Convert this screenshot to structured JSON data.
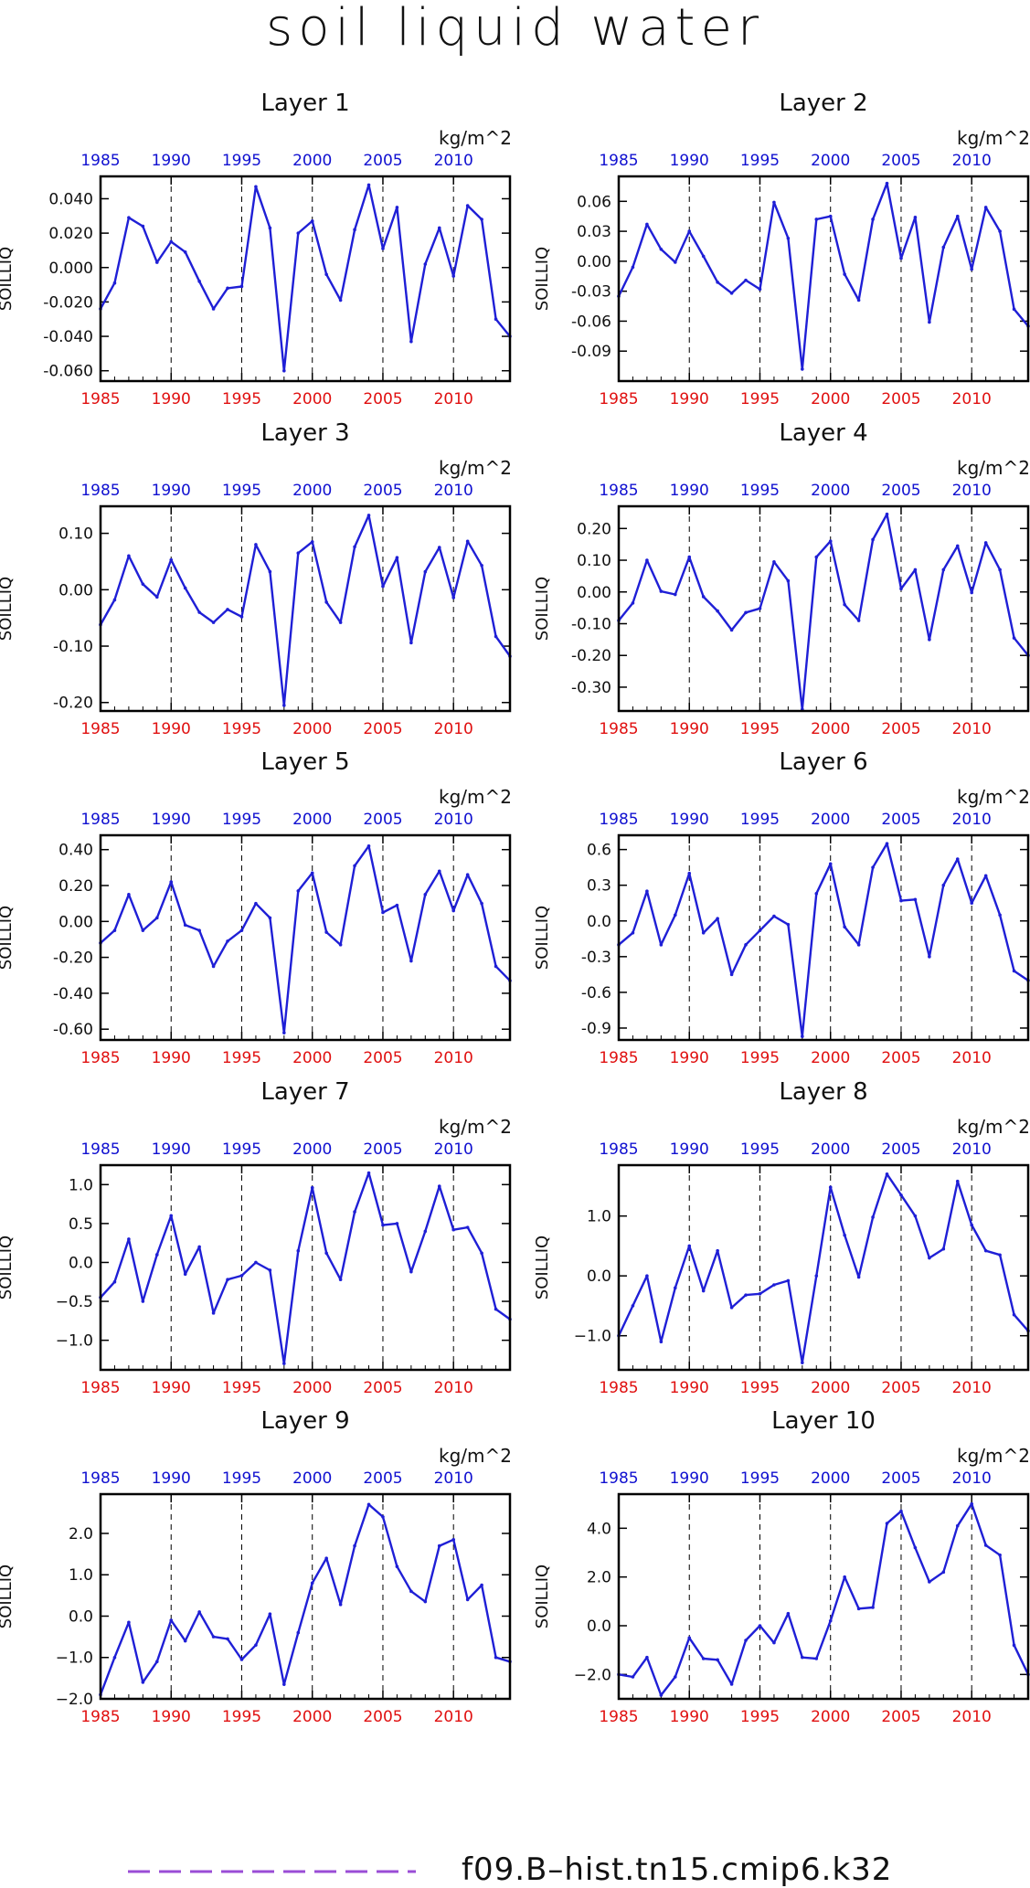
{
  "title": "soil liquid water",
  "legend": {
    "label": "f09.B–hist.tn15.cmip6.k32",
    "color": "#9a4dd6",
    "dashed": true
  },
  "colors": {
    "line": "#1f1fd6",
    "bottom_ticks": "#e01010",
    "top_ticks": "#1010d0",
    "axis": "#000000"
  },
  "chart_data": [
    {
      "type": "line",
      "title": "Layer 1",
      "ylabel": "SOILLIQ",
      "units": "kg/m^2",
      "xlim": [
        1985,
        2014
      ],
      "ylim": [
        -0.066,
        0.053
      ],
      "yticks": [
        -0.06,
        -0.04,
        -0.02,
        0.0,
        0.02,
        0.04
      ],
      "ytick_labels": [
        "-0.060",
        "-0.040",
        "-0.020",
        "0.000",
        "0.020",
        "0.040"
      ],
      "xticks": [
        1985,
        1990,
        1995,
        2000,
        2005,
        2010
      ],
      "xtick_labels": [
        "1985",
        "1990",
        "1995",
        "2000",
        "2005",
        "2010"
      ],
      "vlines": [
        1990,
        1995,
        2000,
        2005,
        2010
      ],
      "x": [
        1985,
        1986,
        1987,
        1988,
        1989,
        1990,
        1991,
        1992,
        1993,
        1994,
        1995,
        1996,
        1997,
        1998,
        1999,
        2000,
        2001,
        2002,
        2003,
        2004,
        2005,
        2006,
        2007,
        2008,
        2009,
        2010,
        2011,
        2012,
        2013,
        2014
      ],
      "y": [
        -0.024,
        -0.009,
        0.029,
        0.024,
        0.003,
        0.015,
        0.009,
        -0.008,
        -0.024,
        -0.012,
        -0.011,
        0.047,
        0.023,
        -0.06,
        0.02,
        0.027,
        -0.004,
        -0.019,
        0.022,
        0.048,
        0.011,
        0.035,
        -0.043,
        0.002,
        0.023,
        -0.005,
        0.036,
        0.028,
        -0.03,
        -0.04
      ]
    },
    {
      "type": "line",
      "title": "Layer 2",
      "ylabel": "SOILLIQ",
      "units": "kg/m^2",
      "xlim": [
        1985,
        2014
      ],
      "ylim": [
        -0.12,
        0.085
      ],
      "yticks": [
        -0.09,
        -0.06,
        -0.03,
        0.0,
        0.03,
        0.06
      ],
      "ytick_labels": [
        "-0.09",
        "-0.06",
        "-0.03",
        "0.00",
        "0.03",
        "0.06"
      ],
      "xticks": [
        1985,
        1990,
        1995,
        2000,
        2005,
        2010
      ],
      "xtick_labels": [
        "1985",
        "1990",
        "1995",
        "2000",
        "2005",
        "2010"
      ],
      "vlines": [
        1990,
        1995,
        2000,
        2005,
        2010
      ],
      "x": [
        1985,
        1986,
        1987,
        1988,
        1989,
        1990,
        1991,
        1992,
        1993,
        1994,
        1995,
        1996,
        1997,
        1998,
        1999,
        2000,
        2001,
        2002,
        2003,
        2004,
        2005,
        2006,
        2007,
        2008,
        2009,
        2010,
        2011,
        2012,
        2013,
        2014
      ],
      "y": [
        -0.035,
        -0.006,
        0.037,
        0.012,
        -0.001,
        0.03,
        0.005,
        -0.021,
        -0.032,
        -0.019,
        -0.028,
        0.059,
        0.023,
        -0.108,
        0.042,
        0.045,
        -0.013,
        -0.039,
        0.042,
        0.078,
        0.003,
        0.044,
        -0.061,
        0.014,
        0.045,
        -0.008,
        0.054,
        0.03,
        -0.048,
        -0.065
      ]
    },
    {
      "type": "line",
      "title": "Layer 3",
      "ylabel": "SOILLIQ",
      "units": "kg/m^2",
      "xlim": [
        1985,
        2014
      ],
      "ylim": [
        -0.215,
        0.148
      ],
      "yticks": [
        -0.2,
        -0.1,
        0.0,
        0.1
      ],
      "ytick_labels": [
        "-0.20",
        "-0.10",
        "0.00",
        "0.10"
      ],
      "xticks": [
        1985,
        1990,
        1995,
        2000,
        2005,
        2010
      ],
      "xtick_labels": [
        "1985",
        "1990",
        "1995",
        "2000",
        "2005",
        "2010"
      ],
      "vlines": [
        1990,
        1995,
        2000,
        2005,
        2010
      ],
      "x": [
        1985,
        1986,
        1987,
        1988,
        1989,
        1990,
        1991,
        1992,
        1993,
        1994,
        1995,
        1996,
        1997,
        1998,
        1999,
        2000,
        2001,
        2002,
        2003,
        2004,
        2005,
        2006,
        2007,
        2008,
        2009,
        2010,
        2011,
        2012,
        2013,
        2014
      ],
      "y": [
        -0.062,
        -0.018,
        0.06,
        0.01,
        -0.013,
        0.053,
        0.003,
        -0.04,
        -0.058,
        -0.035,
        -0.048,
        0.08,
        0.032,
        -0.205,
        0.065,
        0.085,
        -0.022,
        -0.058,
        0.076,
        0.132,
        0.006,
        0.057,
        -0.094,
        0.032,
        0.075,
        -0.014,
        0.086,
        0.043,
        -0.083,
        -0.118
      ]
    },
    {
      "type": "line",
      "title": "Layer 4",
      "ylabel": "SOILLIQ",
      "units": "kg/m^2",
      "xlim": [
        1985,
        2014
      ],
      "ylim": [
        -0.375,
        0.27
      ],
      "yticks": [
        -0.3,
        -0.2,
        -0.1,
        0.0,
        0.1,
        0.2
      ],
      "ytick_labels": [
        "-0.30",
        "-0.20",
        "-0.10",
        "0.00",
        "0.10",
        "0.20"
      ],
      "xticks": [
        1985,
        1990,
        1995,
        2000,
        2005,
        2010
      ],
      "xtick_labels": [
        "1985",
        "1990",
        "1995",
        "2000",
        "2005",
        "2010"
      ],
      "vlines": [
        1990,
        1995,
        2000,
        2005,
        2010
      ],
      "x": [
        1985,
        1986,
        1987,
        1988,
        1989,
        1990,
        1991,
        1992,
        1993,
        1994,
        1995,
        1996,
        1997,
        1998,
        1999,
        2000,
        2001,
        2002,
        2003,
        2004,
        2005,
        2006,
        2007,
        2008,
        2009,
        2010,
        2011,
        2012,
        2013,
        2014
      ],
      "y": [
        -0.09,
        -0.035,
        0.1,
        0.002,
        -0.008,
        0.11,
        -0.015,
        -0.06,
        -0.12,
        -0.065,
        -0.052,
        0.095,
        0.035,
        -0.37,
        0.11,
        0.16,
        -0.04,
        -0.09,
        0.165,
        0.245,
        0.01,
        0.07,
        -0.15,
        0.07,
        0.145,
        -0.002,
        0.155,
        0.07,
        -0.145,
        -0.2
      ]
    },
    {
      "type": "line",
      "title": "Layer 5",
      "ylabel": "SOILLIQ",
      "units": "kg/m^2",
      "xlim": [
        1985,
        2014
      ],
      "ylim": [
        -0.66,
        0.48
      ],
      "yticks": [
        -0.6,
        -0.4,
        -0.2,
        0.0,
        0.2,
        0.4
      ],
      "ytick_labels": [
        "-0.60",
        "-0.40",
        "-0.20",
        "0.00",
        "0.20",
        "0.40"
      ],
      "xticks": [
        1985,
        1990,
        1995,
        2000,
        2005,
        2010
      ],
      "xtick_labels": [
        "1985",
        "1990",
        "1995",
        "2000",
        "2005",
        "2010"
      ],
      "vlines": [
        1990,
        1995,
        2000,
        2005,
        2010
      ],
      "x": [
        1985,
        1986,
        1987,
        1988,
        1989,
        1990,
        1991,
        1992,
        1993,
        1994,
        1995,
        1996,
        1997,
        1998,
        1999,
        2000,
        2001,
        2002,
        2003,
        2004,
        2005,
        2006,
        2007,
        2008,
        2009,
        2010,
        2011,
        2012,
        2013,
        2014
      ],
      "y": [
        -0.12,
        -0.05,
        0.15,
        -0.05,
        0.02,
        0.22,
        -0.02,
        -0.05,
        -0.25,
        -0.11,
        -0.05,
        0.1,
        0.02,
        -0.62,
        0.17,
        0.27,
        -0.06,
        -0.13,
        0.31,
        0.42,
        0.05,
        0.09,
        -0.22,
        0.15,
        0.28,
        0.06,
        0.26,
        0.1,
        -0.25,
        -0.33
      ]
    },
    {
      "type": "line",
      "title": "Layer 6",
      "ylabel": "SOILLIQ",
      "units": "kg/m^2",
      "xlim": [
        1985,
        2014
      ],
      "ylim": [
        -1.0,
        0.72
      ],
      "yticks": [
        -0.9,
        -0.6,
        -0.3,
        0.0,
        0.3,
        0.6
      ],
      "ytick_labels": [
        "-0.9",
        "-0.6",
        "-0.3",
        "0.0",
        "0.3",
        "0.6"
      ],
      "xticks": [
        1985,
        1990,
        1995,
        2000,
        2005,
        2010
      ],
      "xtick_labels": [
        "1985",
        "1990",
        "1995",
        "2000",
        "2005",
        "2010"
      ],
      "vlines": [
        1990,
        1995,
        2000,
        2005,
        2010
      ],
      "x": [
        1985,
        1986,
        1987,
        1988,
        1989,
        1990,
        1991,
        1992,
        1993,
        1994,
        1995,
        1996,
        1997,
        1998,
        1999,
        2000,
        2001,
        2002,
        2003,
        2004,
        2005,
        2006,
        2007,
        2008,
        2009,
        2010,
        2011,
        2012,
        2013,
        2014
      ],
      "y": [
        -0.2,
        -0.1,
        0.25,
        -0.2,
        0.05,
        0.4,
        -0.1,
        0.02,
        -0.45,
        -0.2,
        -0.08,
        0.04,
        -0.03,
        -0.97,
        0.23,
        0.48,
        -0.05,
        -0.2,
        0.45,
        0.65,
        0.17,
        0.18,
        -0.3,
        0.3,
        0.52,
        0.15,
        0.38,
        0.05,
        -0.42,
        -0.5
      ]
    },
    {
      "type": "line",
      "title": "Layer 7",
      "ylabel": "SOILLIQ",
      "units": "kg/m^2",
      "xlim": [
        1985,
        2014
      ],
      "ylim": [
        -1.38,
        1.25
      ],
      "yticks": [
        -1.0,
        -0.5,
        0.0,
        0.5,
        1.0
      ],
      "ytick_labels": [
        "−1.0",
        "−0.5",
        "0.0",
        "0.5",
        "1.0"
      ],
      "xticks": [
        1985,
        1990,
        1995,
        2000,
        2005,
        2010
      ],
      "xtick_labels": [
        "1985",
        "1990",
        "1995",
        "2000",
        "2005",
        "2010"
      ],
      "vlines": [
        1990,
        1995,
        2000,
        2005,
        2010
      ],
      "x": [
        1985,
        1986,
        1987,
        1988,
        1989,
        1990,
        1991,
        1992,
        1993,
        1994,
        1995,
        1996,
        1997,
        1998,
        1999,
        2000,
        2001,
        2002,
        2003,
        2004,
        2005,
        2006,
        2007,
        2008,
        2009,
        2010,
        2011,
        2012,
        2013,
        2014
      ],
      "y": [
        -0.45,
        -0.25,
        0.3,
        -0.5,
        0.1,
        0.6,
        -0.15,
        0.2,
        -0.65,
        -0.22,
        -0.17,
        0.0,
        -0.1,
        -1.3,
        0.15,
        0.96,
        0.12,
        -0.22,
        0.65,
        1.15,
        0.48,
        0.5,
        -0.12,
        0.4,
        0.98,
        0.42,
        0.45,
        0.12,
        -0.6,
        -0.73
      ]
    },
    {
      "type": "line",
      "title": "Layer 8",
      "ylabel": "SOILLIQ",
      "units": "kg/m^2",
      "xlim": [
        1985,
        2014
      ],
      "ylim": [
        -1.57,
        1.85
      ],
      "yticks": [
        -1.0,
        0.0,
        1.0
      ],
      "ytick_labels": [
        "−1.0",
        "0.0",
        "1.0"
      ],
      "xticks": [
        1985,
        1990,
        1995,
        2000,
        2005,
        2010
      ],
      "xtick_labels": [
        "1985",
        "1990",
        "1995",
        "2000",
        "2005",
        "2010"
      ],
      "vlines": [
        1990,
        1995,
        2000,
        2005,
        2010
      ],
      "x": [
        1985,
        1986,
        1987,
        1988,
        1989,
        1990,
        1991,
        1992,
        1993,
        1994,
        1995,
        1996,
        1997,
        1998,
        1999,
        2000,
        2001,
        2002,
        2003,
        2004,
        2005,
        2006,
        2007,
        2008,
        2009,
        2010,
        2011,
        2012,
        2013,
        2014
      ],
      "y": [
        -1.0,
        -0.5,
        0.0,
        -1.1,
        -0.2,
        0.5,
        -0.25,
        0.42,
        -0.53,
        -0.32,
        -0.3,
        -0.15,
        -0.08,
        -1.45,
        0.0,
        1.48,
        0.68,
        -0.02,
        0.98,
        1.7,
        1.35,
        1.0,
        0.3,
        0.45,
        1.58,
        0.85,
        0.42,
        0.35,
        -0.65,
        -0.92
      ]
    },
    {
      "type": "line",
      "title": "Layer 9",
      "ylabel": "SOILLIQ",
      "units": "kg/m^2",
      "xlim": [
        1985,
        2014
      ],
      "ylim": [
        -2.0,
        2.95
      ],
      "yticks": [
        -2.0,
        -1.0,
        0.0,
        1.0,
        2.0
      ],
      "ytick_labels": [
        "−2.0",
        "−1.0",
        "0.0",
        "1.0",
        "2.0"
      ],
      "xticks": [
        1985,
        1990,
        1995,
        2000,
        2005,
        2010
      ],
      "xtick_labels": [
        "1985",
        "1990",
        "1995",
        "2000",
        "2005",
        "2010"
      ],
      "vlines": [
        1990,
        1995,
        2000,
        2005,
        2010
      ],
      "x": [
        1985,
        1986,
        1987,
        1988,
        1989,
        1990,
        1991,
        1992,
        1993,
        1994,
        1995,
        1996,
        1997,
        1998,
        1999,
        2000,
        2001,
        2002,
        2003,
        2004,
        2005,
        2006,
        2007,
        2008,
        2009,
        2010,
        2011,
        2012,
        2013,
        2014
      ],
      "y": [
        -1.9,
        -1.0,
        -0.15,
        -1.6,
        -1.1,
        -0.1,
        -0.6,
        0.1,
        -0.5,
        -0.55,
        -1.05,
        -0.7,
        0.05,
        -1.65,
        -0.4,
        0.8,
        1.4,
        0.28,
        1.7,
        2.7,
        2.4,
        1.2,
        0.6,
        0.35,
        1.7,
        1.85,
        0.4,
        0.75,
        -1.0,
        -1.1
      ]
    },
    {
      "type": "line",
      "title": "Layer 10",
      "ylabel": "SOILLIQ",
      "units": "kg/m^2",
      "xlim": [
        1985,
        2014
      ],
      "ylim": [
        -3.0,
        5.4
      ],
      "yticks": [
        -2.0,
        0.0,
        2.0,
        4.0
      ],
      "ytick_labels": [
        "−2.0",
        "0.0",
        "2.0",
        "4.0"
      ],
      "xticks": [
        1985,
        1990,
        1995,
        2000,
        2005,
        2010
      ],
      "xtick_labels": [
        "1985",
        "1990",
        "1995",
        "2000",
        "2005",
        "2010"
      ],
      "vlines": [
        1990,
        1995,
        2000,
        2005,
        2010
      ],
      "x": [
        1985,
        1986,
        1987,
        1988,
        1989,
        1990,
        1991,
        1992,
        1993,
        1994,
        1995,
        1996,
        1997,
        1998,
        1999,
        2000,
        2001,
        2002,
        2003,
        2004,
        2005,
        2006,
        2007,
        2008,
        2009,
        2010,
        2011,
        2012,
        2013,
        2014
      ],
      "y": [
        -2.0,
        -2.1,
        -1.3,
        -2.85,
        -2.1,
        -0.5,
        -1.35,
        -1.4,
        -2.4,
        -0.6,
        0.0,
        -0.7,
        0.5,
        -1.3,
        -1.35,
        0.2,
        2.0,
        0.7,
        0.75,
        4.2,
        4.7,
        3.2,
        1.8,
        2.2,
        4.1,
        5.0,
        3.3,
        2.9,
        -0.8,
        -2.0
      ]
    }
  ]
}
